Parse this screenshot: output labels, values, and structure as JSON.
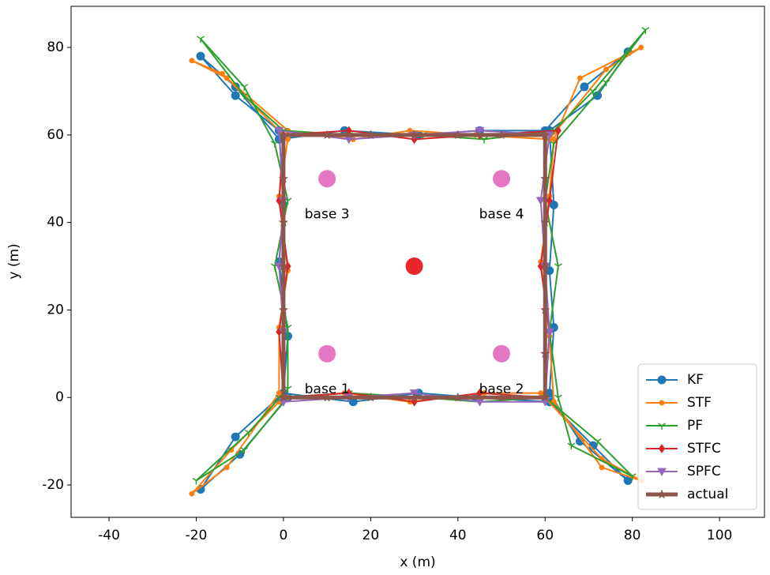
{
  "chart_data": {
    "type": "line",
    "xlabel": "x (m)",
    "ylabel": "y (m)",
    "xlim": [
      -48.7,
      110.3
    ],
    "ylim": [
      -27.4,
      89.4
    ],
    "xticks": [
      -40,
      -20,
      0,
      20,
      40,
      60,
      80,
      100
    ],
    "yticks": [
      -20,
      0,
      20,
      40,
      60,
      80
    ],
    "grid": false,
    "legend": "lower right",
    "series": [
      {
        "name": "KF",
        "color": "#1f77b4",
        "marker": "circle",
        "x": [
          0,
          16,
          31,
          44,
          61,
          71,
          79,
          68,
          61,
          62,
          61,
          62,
          61,
          72,
          79,
          69,
          60,
          45,
          31,
          14,
          -1,
          -11,
          -19,
          -11,
          -1,
          0,
          -1,
          1,
          0,
          -11,
          -19,
          -10,
          1
        ],
        "y": [
          1,
          -1,
          1,
          0,
          -1,
          -11,
          -19,
          -10,
          1,
          16,
          29,
          44,
          61,
          69,
          79,
          71,
          61,
          61,
          60,
          61,
          59,
          71,
          78,
          69,
          61,
          44,
          31,
          14,
          1,
          -9,
          -21,
          -13,
          0
        ]
      },
      {
        "name": "STF",
        "color": "#ff7f0e",
        "marker": "dot",
        "x": [
          1,
          14,
          29,
          46,
          59,
          73,
          82,
          73,
          62,
          61,
          59,
          61,
          62,
          68,
          82,
          74,
          61,
          44,
          29,
          16,
          1,
          -13,
          -21,
          -14,
          1,
          -1,
          1,
          -1,
          -1,
          -12,
          -21,
          -13,
          -1
        ],
        "y": [
          0,
          1,
          -1,
          1,
          1,
          -14,
          -19,
          -16,
          -1,
          14,
          31,
          46,
          59,
          73,
          80,
          75,
          59,
          60,
          61,
          59,
          61,
          73,
          77,
          74,
          59,
          46,
          29,
          16,
          -1,
          -12,
          -22,
          -16,
          1
        ]
      },
      {
        "name": "PF",
        "color": "#2ca02c",
        "marker": "tri",
        "x": [
          -1,
          15,
          32,
          45,
          60,
          72,
          80,
          66,
          63,
          61,
          63,
          60,
          62,
          74,
          83,
          71,
          62,
          46,
          32,
          15,
          0,
          -9,
          -19,
          -9,
          -2,
          1,
          -2,
          1,
          1,
          -8,
          -20,
          -9,
          0
        ],
        "y": [
          0,
          1,
          0,
          -1,
          0,
          -10,
          -18,
          -11,
          0,
          15,
          30,
          45,
          58,
          72,
          84,
          70,
          61,
          59,
          60,
          60,
          61,
          69,
          82,
          71,
          58,
          45,
          30,
          16,
          2,
          -8,
          -19,
          -12,
          -1
        ]
      },
      {
        "name": "STFC",
        "color": "#d62728",
        "marker": "diamond",
        "x": [
          0,
          15,
          30,
          45,
          60,
          61,
          59,
          61,
          63,
          45,
          30,
          15,
          0,
          -1,
          1,
          -1,
          0
        ],
        "y": [
          0,
          1,
          -1,
          1,
          0,
          15,
          30,
          45,
          61,
          60,
          59,
          61,
          60,
          45,
          30,
          15,
          0
        ]
      },
      {
        "name": "SPFC",
        "color": "#9467bd",
        "marker": "triangle-down",
        "x": [
          0,
          15,
          30,
          45,
          60,
          61,
          60,
          59,
          61,
          45,
          30,
          15,
          -1,
          0,
          -1,
          0,
          0
        ],
        "y": [
          -1,
          0,
          1,
          -1,
          -1,
          15,
          30,
          45,
          60,
          61,
          60,
          59,
          61,
          45,
          30,
          15,
          -1
        ]
      },
      {
        "name": "actual",
        "color": "#8c564b",
        "marker": "star",
        "x": [
          0,
          10,
          20,
          30,
          40,
          50,
          60,
          60,
          60,
          60,
          60,
          60,
          60,
          50,
          40,
          30,
          20,
          10,
          0,
          0,
          0,
          0,
          0,
          0,
          0
        ],
        "y": [
          0,
          0,
          0,
          0,
          0,
          0,
          0,
          10,
          20,
          30,
          40,
          50,
          60,
          60,
          60,
          60,
          60,
          60,
          60,
          50,
          40,
          30,
          20,
          10,
          0
        ]
      }
    ],
    "points": [
      {
        "x": 10,
        "y": 10,
        "color": "#e377c2",
        "label": "base 1"
      },
      {
        "x": 50,
        "y": 10,
        "color": "#e377c2",
        "label": "base 2"
      },
      {
        "x": 10,
        "y": 50,
        "color": "#e377c2",
        "label": "base 3"
      },
      {
        "x": 50,
        "y": 50,
        "color": "#e377c2",
        "label": "base 4"
      },
      {
        "x": 30,
        "y": 30,
        "color": "#e8262b"
      }
    ]
  }
}
